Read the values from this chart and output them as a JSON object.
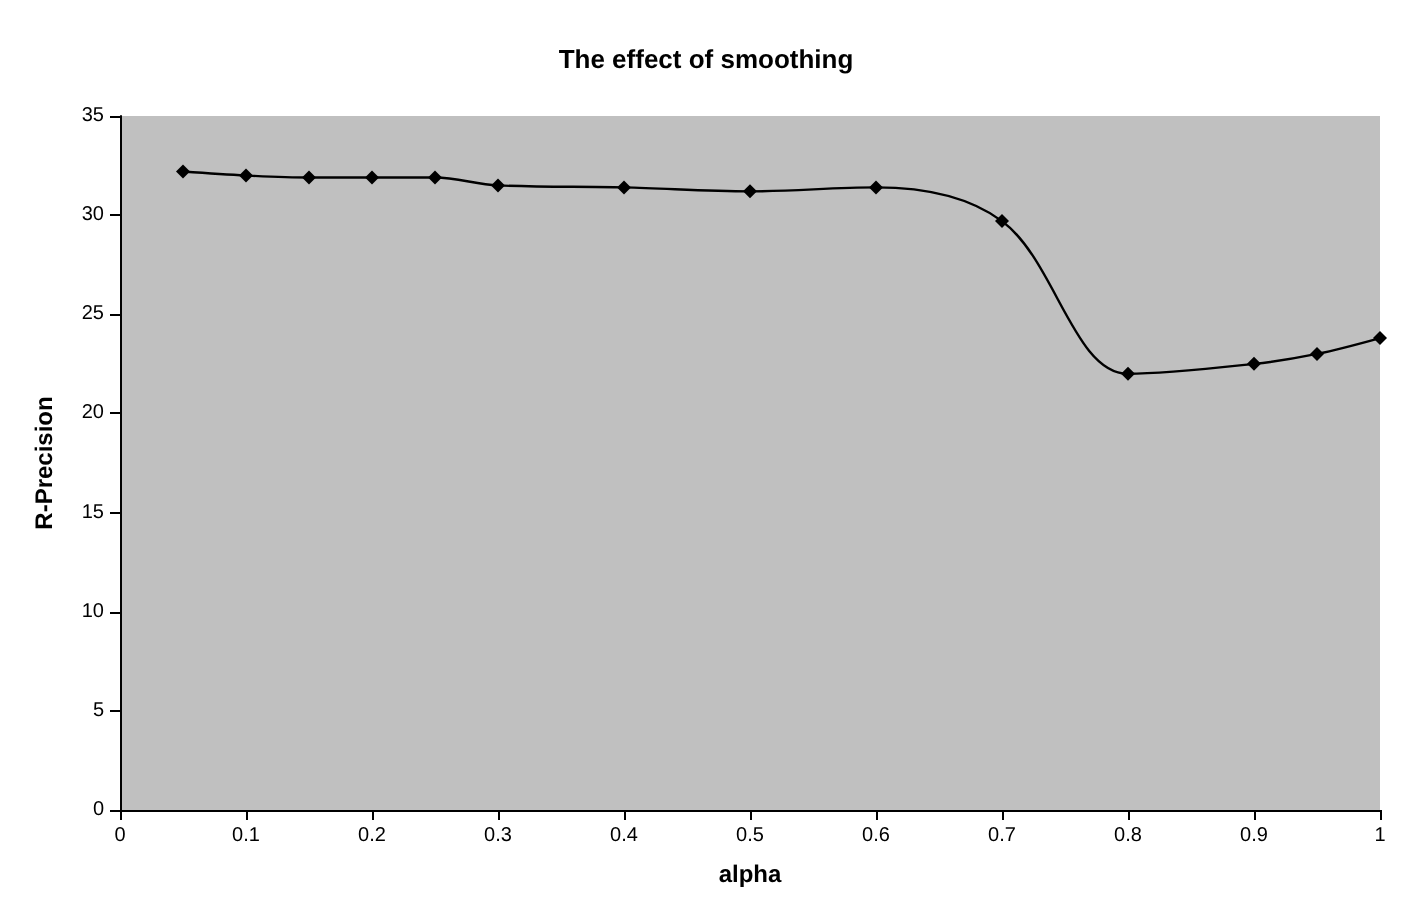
{
  "chart_data": {
    "type": "line",
    "title": "The effect of smoothing",
    "xlabel": "alpha",
    "ylabel": "R-Precision",
    "x": [
      0.05,
      0.1,
      0.15,
      0.2,
      0.25,
      0.3,
      0.4,
      0.5,
      0.6,
      0.7,
      0.8,
      0.9,
      0.95,
      1
    ],
    "series": [
      {
        "color": "#000000",
        "values": [
          32.2,
          32.0,
          31.9,
          31.9,
          31.9,
          31.5,
          31.4,
          31.2,
          31.4,
          29.7,
          22.0,
          22.5,
          23.0,
          23.8
        ]
      }
    ],
    "xlim": [
      0,
      1
    ],
    "xticks": [
      0,
      0.1,
      0.2,
      0.3,
      0.4,
      0.5,
      0.6,
      0.7,
      0.8,
      0.9,
      1
    ],
    "ylim": [
      0,
      35
    ],
    "yticks": [
      0,
      5,
      10,
      15,
      20,
      25,
      30,
      35
    ],
    "grid": false,
    "marker": "diamond",
    "line_style": "solid"
  }
}
